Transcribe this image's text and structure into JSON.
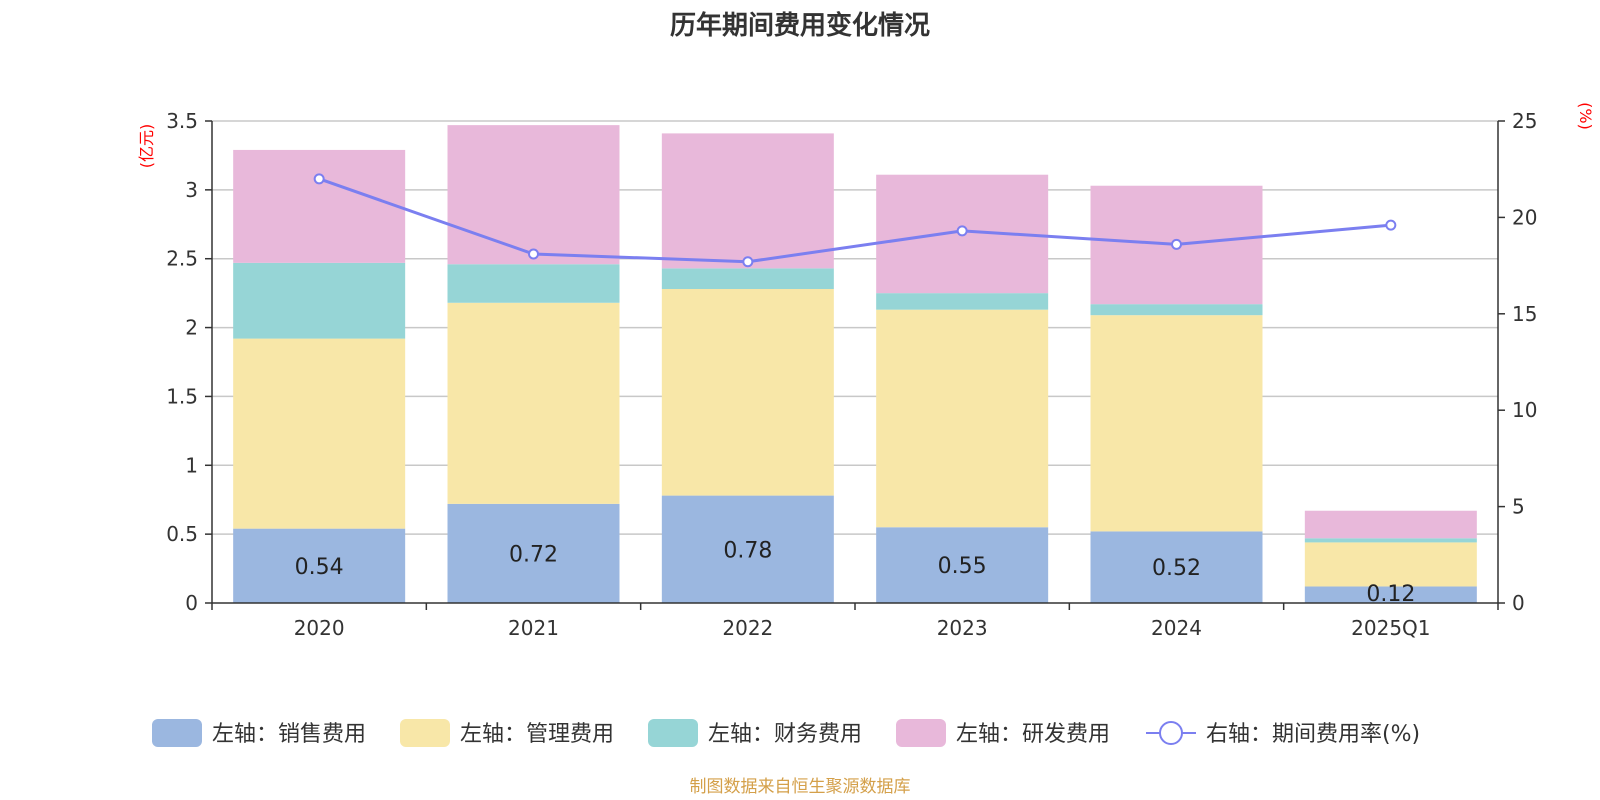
{
  "chart_data": {
    "type": "bar",
    "title": "历年期间费用变化情况",
    "left_unit": "(亿元)",
    "right_unit": "(%)",
    "categories": [
      "2020",
      "2021",
      "2022",
      "2023",
      "2024",
      "2025Q1"
    ],
    "y_left": {
      "min": 0,
      "max": 3.5,
      "ticks": [
        "0",
        "0.5",
        "1",
        "1.5",
        "2",
        "2.5",
        "3",
        "3.5"
      ]
    },
    "y_right": {
      "min": 0,
      "max": 25,
      "ticks": [
        "0",
        "5",
        "10",
        "15",
        "20",
        "25"
      ]
    },
    "grid": true,
    "stacked": true,
    "series": [
      {
        "name": "左轴：销售费用",
        "axis": "left",
        "color": "#9bb7e0",
        "values": [
          0.54,
          0.72,
          0.78,
          0.55,
          0.52,
          0.12
        ],
        "labels": [
          "0.54",
          "0.72",
          "0.78",
          "0.55",
          "0.52",
          "0.12"
        ]
      },
      {
        "name": "左轴：管理费用",
        "axis": "left",
        "color": "#f8e7a8",
        "values": [
          1.38,
          1.46,
          1.5,
          1.58,
          1.57,
          0.32
        ]
      },
      {
        "name": "左轴：财务费用",
        "axis": "left",
        "color": "#96d5d6",
        "values": [
          0.55,
          0.28,
          0.15,
          0.12,
          0.08,
          0.03
        ]
      },
      {
        "name": "左轴：研发费用",
        "axis": "left",
        "color": "#e8b8da",
        "values": [
          0.82,
          1.01,
          0.98,
          0.86,
          0.86,
          0.2
        ]
      },
      {
        "name": "右轴：期间费用率(%)",
        "axis": "right",
        "type": "line",
        "color": "#7b7ff0",
        "values": [
          22.0,
          18.1,
          17.7,
          19.3,
          18.6,
          19.6
        ]
      }
    ],
    "legend_position": "bottom",
    "source": "制图数据来自恒生聚源数据库"
  }
}
